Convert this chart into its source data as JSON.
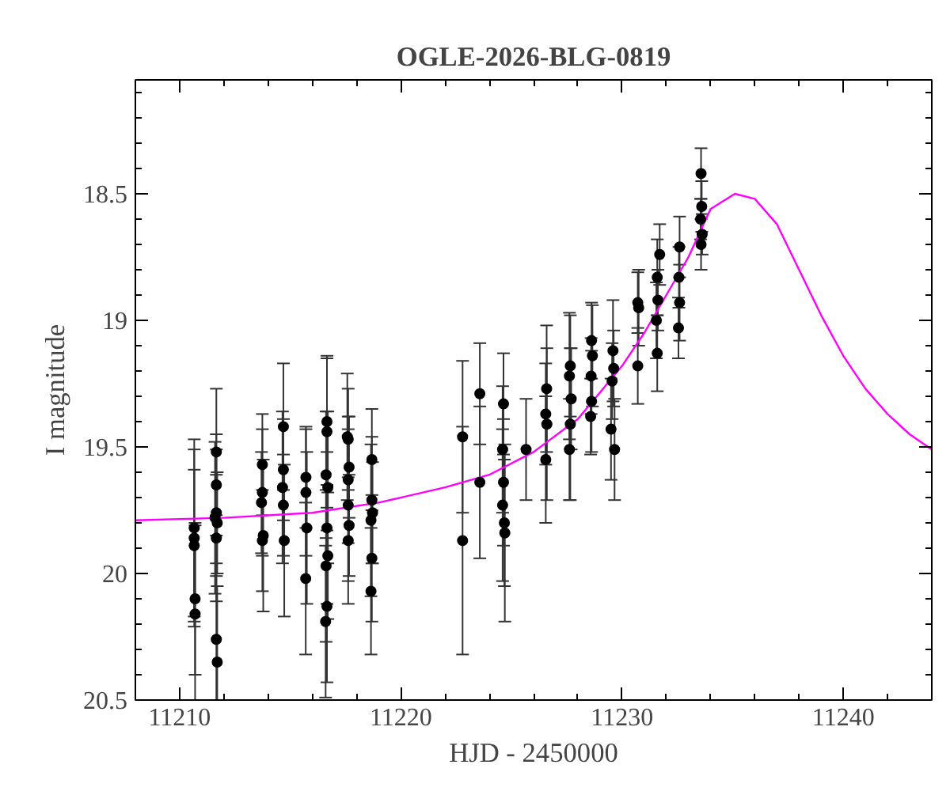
{
  "chart_data": {
    "type": "scatter",
    "title": "OGLE-2026-BLG-0819",
    "xlabel": "HJD - 2450000",
    "ylabel": "I magnitude",
    "xlim": [
      11208,
      11244
    ],
    "ylim": [
      20.5,
      18.05
    ],
    "xticks": [
      11210,
      11220,
      11230,
      11240
    ],
    "yticks": [
      18.5,
      19,
      19.5,
      20,
      20.5
    ],
    "grid": false,
    "marker": "circle",
    "series": [
      {
        "color": "#000000",
        "x": [
          11210.66,
          11210.66,
          11210.66,
          11210.7,
          11210.7,
          11211.66,
          11211.66,
          11211.66,
          11211.7,
          11211.6,
          11211.66,
          11211.66,
          11211.7,
          11213.74,
          11213.74,
          11213.7,
          11213.78,
          11213.74,
          11214.69,
          11214.69,
          11214.65,
          11214.73,
          11214.69,
          11215.71,
          11215.71,
          11215.75,
          11215.7,
          11216.66,
          11216.66,
          11216.62,
          11216.7,
          11216.66,
          11216.7,
          11216.62,
          11216.66,
          11216.6,
          11217.62,
          11217.58,
          11217.66,
          11217.62,
          11217.62,
          11217.66,
          11217.62,
          11218.69,
          11218.69,
          11218.65,
          11218.72,
          11218.69,
          11218.65,
          11222.79,
          11222.79,
          11223.57,
          11223.57,
          11224.64,
          11224.6,
          11224.64,
          11224.6,
          11224.68,
          11224.7,
          11225.66,
          11226.59,
          11226.55,
          11226.6,
          11226.55,
          11227.66,
          11227.62,
          11227.7,
          11227.66,
          11227.62,
          11228.62,
          11228.66,
          11228.6,
          11228.62,
          11228.58,
          11229.59,
          11229.62,
          11229.55,
          11229.5,
          11229.66,
          11230.71,
          11230.75,
          11230.71,
          11231.59,
          11231.62,
          11231.55,
          11231.59,
          11231.7,
          11232.57,
          11232.6,
          11232.55,
          11232.6,
          11233.57,
          11233.6,
          11233.55,
          11233.62,
          11233.57
        ],
        "values": [
          19.82,
          19.89,
          19.86,
          20.1,
          20.16,
          19.52,
          19.65,
          19.76,
          19.8,
          19.78,
          19.86,
          20.26,
          20.35,
          19.57,
          19.68,
          19.72,
          19.85,
          19.87,
          19.42,
          19.59,
          19.66,
          19.87,
          19.73,
          19.62,
          19.68,
          19.82,
          20.02,
          19.4,
          19.44,
          19.61,
          19.66,
          19.82,
          19.93,
          19.97,
          20.13,
          20.19,
          19.47,
          19.46,
          19.58,
          19.63,
          19.73,
          19.81,
          19.87,
          19.55,
          19.71,
          19.79,
          19.76,
          19.94,
          20.07,
          19.46,
          19.87,
          19.29,
          19.64,
          19.33,
          19.51,
          19.64,
          19.73,
          19.8,
          19.84,
          19.51,
          19.27,
          19.37,
          19.41,
          19.55,
          19.18,
          19.22,
          19.31,
          19.41,
          19.51,
          19.08,
          19.14,
          19.22,
          19.32,
          19.38,
          19.12,
          19.19,
          19.24,
          19.43,
          19.51,
          18.93,
          18.95,
          19.18,
          18.83,
          18.92,
          19,
          19.13,
          18.74,
          18.83,
          18.93,
          19.03,
          18.71,
          18.42,
          18.55,
          18.6,
          18.66,
          18.7
        ],
        "errors": [
          0.35,
          0.3,
          0.35,
          0.3,
          0.35,
          0.25,
          0.2,
          0.25,
          0.2,
          0.3,
          0.25,
          0.3,
          0.3,
          0.2,
          0.25,
          0.2,
          0.3,
          0.2,
          0.25,
          0.2,
          0.3,
          0.3,
          0.2,
          0.2,
          0.25,
          0.3,
          0.3,
          0.25,
          0.3,
          0.25,
          0.3,
          0.3,
          0.25,
          0.3,
          0.3,
          0.3,
          0.2,
          0.25,
          0.2,
          0.25,
          0.3,
          0.2,
          0.25,
          0.2,
          0.25,
          0.3,
          0.2,
          0.25,
          0.25,
          0.3,
          0.45,
          0.2,
          0.3,
          0.2,
          0.25,
          0.25,
          0.3,
          0.25,
          0.35,
          0.2,
          0.25,
          0.2,
          0.3,
          0.25,
          0.2,
          0.25,
          0.2,
          0.3,
          0.2,
          0.15,
          0.2,
          0.15,
          0.2,
          0.15,
          0.2,
          0.15,
          0.15,
          0.2,
          0.2,
          0.12,
          0.15,
          0.15,
          0.15,
          0.12,
          0.15,
          0.15,
          0.12,
          0.12,
          0.15,
          0.12,
          0.12,
          0.1,
          0.1,
          0.08,
          0.08,
          0.1
        ]
      },
      {
        "type": "line",
        "color": "#ff00ff",
        "marker": "none",
        "line_style": "solid",
        "x": [
          11208,
          11212,
          11216,
          11219,
          11222,
          11224,
          11226,
          11228,
          11230,
          11231,
          11232,
          11233,
          11234,
          11235.1,
          11236,
          11237,
          11238,
          11239,
          11240,
          11241,
          11242,
          11243,
          11244
        ],
        "values": [
          19.79,
          19.78,
          19.76,
          19.72,
          19.66,
          19.61,
          19.52,
          19.39,
          19.18,
          19.05,
          18.9,
          18.75,
          18.56,
          18.5,
          18.52,
          18.62,
          18.8,
          18.98,
          19.14,
          19.27,
          19.37,
          19.45,
          19.51
        ]
      }
    ]
  }
}
